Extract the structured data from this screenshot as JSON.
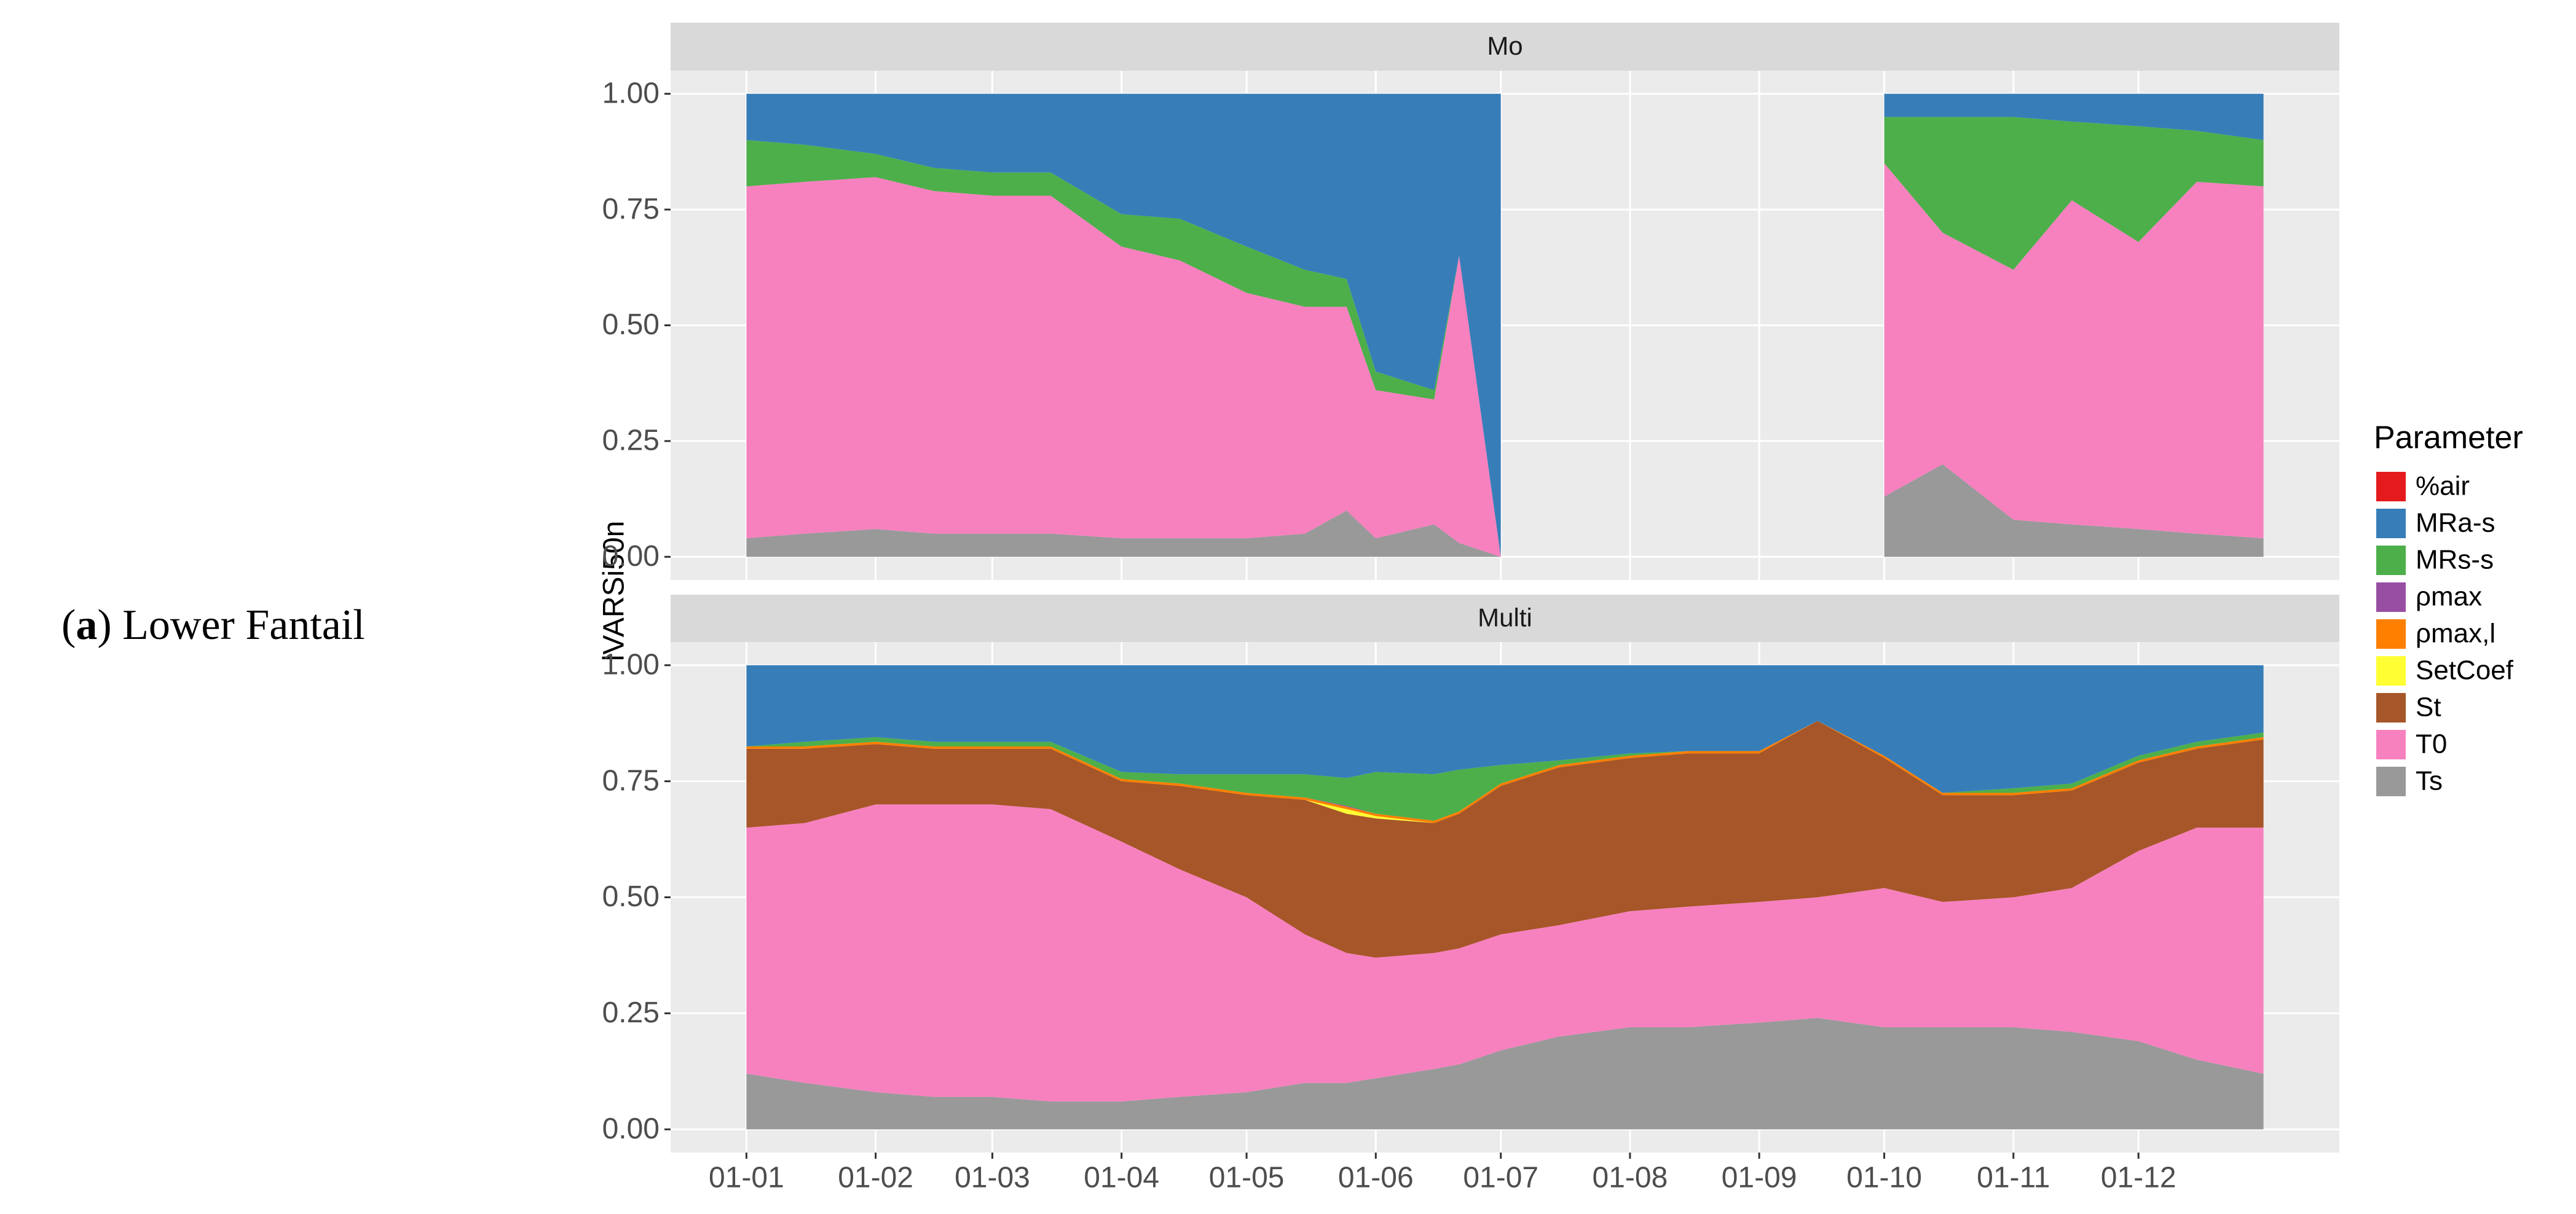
{
  "caption": {
    "open": "(",
    "label": "a",
    "text": ") Lower Fantail"
  },
  "chart_data": {
    "type": "stacked_area",
    "ylabel": "lVARSi50n",
    "legend_title": "Parameter",
    "legend": "right",
    "grid": true,
    "x": [
      1,
      15,
      32,
      46,
      60,
      74,
      91,
      105,
      121,
      135,
      145,
      152,
      166,
      172,
      182,
      196,
      213,
      227,
      244,
      258,
      274,
      288,
      305,
      319,
      335,
      349,
      365
    ],
    "xlim": [
      -17.2,
      383.2
    ],
    "xticks": [
      {
        "value": 1,
        "label": "01-01"
      },
      {
        "value": 32,
        "label": "01-02"
      },
      {
        "value": 60,
        "label": "01-03"
      },
      {
        "value": 91,
        "label": "01-04"
      },
      {
        "value": 121,
        "label": "01-05"
      },
      {
        "value": 152,
        "label": "01-06"
      },
      {
        "value": 182,
        "label": "01-07"
      },
      {
        "value": 213,
        "label": "01-08"
      },
      {
        "value": 244,
        "label": "01-09"
      },
      {
        "value": 274,
        "label": "01-10"
      },
      {
        "value": 305,
        "label": "01-11"
      },
      {
        "value": 335,
        "label": "01-12"
      }
    ],
    "ylim": [
      -0.05,
      1.05
    ],
    "yticks": [
      {
        "value": 0,
        "label": "0.00"
      },
      {
        "value": 0.25,
        "label": "0.25"
      },
      {
        "value": 0.5,
        "label": "0.50"
      },
      {
        "value": 0.75,
        "label": "0.75"
      },
      {
        "value": 1,
        "label": "1.00"
      }
    ],
    "series": [
      {
        "name": "%air",
        "color": "#e41a1c"
      },
      {
        "name": "MRa-s",
        "color": "#377eb8"
      },
      {
        "name": "MRs-s",
        "color": "#4daf4a"
      },
      {
        "name": "ρmax",
        "color": "#984ea3"
      },
      {
        "name": "ρmax,l",
        "color": "#ff7f00"
      },
      {
        "name": "SetCoef",
        "color": "#ffff33"
      },
      {
        "name": "St",
        "color": "#a65628"
      },
      {
        "name": "T0",
        "color": "#f781bf"
      },
      {
        "name": "Ts",
        "color": "#999999"
      }
    ],
    "facets": [
      {
        "title": "Mo",
        "values": [
          [
            0,
            0,
            0,
            0,
            0,
            0,
            0,
            0,
            0,
            0,
            0,
            0,
            0,
            0,
            0,
            null,
            null,
            null,
            null,
            null,
            0,
            0,
            0,
            0,
            0,
            0,
            0
          ],
          [
            0.1,
            0.11,
            0.13,
            0.16,
            0.17,
            0.17,
            0.26,
            0.27,
            0.33,
            0.38,
            0.4,
            0.6,
            0.64,
            0.35,
            1,
            null,
            null,
            null,
            null,
            null,
            0.05,
            0.05,
            0.05,
            0.06,
            0.07,
            0.08,
            0.1
          ],
          [
            0.1,
            0.08,
            0.05,
            0.05,
            0.05,
            0.05,
            0.07,
            0.09,
            0.1,
            0.08,
            0.06,
            0.04,
            0.02,
            0,
            0,
            null,
            null,
            null,
            null,
            null,
            0.1,
            0.25,
            0.33,
            0.17,
            0.25,
            0.11,
            0.1
          ],
          [
            0,
            0,
            0,
            0,
            0,
            0,
            0,
            0,
            0,
            0,
            0,
            0,
            0,
            0,
            0,
            null,
            null,
            null,
            null,
            null,
            0,
            0,
            0,
            0,
            0,
            0,
            0
          ],
          [
            0,
            0,
            0,
            0,
            0,
            0,
            0,
            0,
            0,
            0,
            0,
            0,
            0,
            0,
            0,
            null,
            null,
            null,
            null,
            null,
            0,
            0,
            0,
            0,
            0,
            0,
            0
          ],
          [
            0,
            0,
            0,
            0,
            0,
            0,
            0,
            0,
            0,
            0,
            0,
            0,
            0,
            0,
            0,
            null,
            null,
            null,
            null,
            null,
            0,
            0,
            0,
            0,
            0,
            0,
            0
          ],
          [
            0,
            0,
            0,
            0,
            0,
            0,
            0,
            0,
            0,
            0,
            0,
            0,
            0,
            0,
            0,
            null,
            null,
            null,
            null,
            null,
            0,
            0,
            0,
            0,
            0,
            0,
            0
          ],
          [
            0.76,
            0.76,
            0.76,
            0.74,
            0.73,
            0.73,
            0.63,
            0.6,
            0.53,
            0.49,
            0.44,
            0.32,
            0.27,
            0.62,
            0,
            null,
            null,
            null,
            null,
            null,
            0.72,
            0.5,
            0.54,
            0.7,
            0.62,
            0.76,
            0.76
          ],
          [
            0.04,
            0.05,
            0.06,
            0.05,
            0.05,
            0.05,
            0.04,
            0.04,
            0.04,
            0.05,
            0.1,
            0.04,
            0.07,
            0.03,
            0,
            null,
            null,
            null,
            null,
            null,
            0.13,
            0.2,
            0.08,
            0.07,
            0.06,
            0.05,
            0.04
          ]
        ]
      },
      {
        "title": "Multi",
        "values": [
          [
            0,
            0,
            0,
            0,
            0,
            0,
            0,
            0,
            0,
            0,
            0,
            0,
            0,
            0,
            0,
            0,
            0,
            0,
            0,
            0,
            0,
            0,
            0,
            0,
            0,
            0,
            0
          ],
          [
            0.175,
            0.165,
            0.155,
            0.165,
            0.165,
            0.165,
            0.23,
            0.235,
            0.235,
            0.235,
            0.243,
            0.23,
            0.235,
            0.225,
            0.215,
            0.205,
            0.19,
            0.185,
            0.185,
            0.12,
            0.195,
            0.275,
            0.265,
            0.255,
            0.195,
            0.165,
            0.145
          ],
          [
            0,
            0.01,
            0.01,
            0.01,
            0.01,
            0.01,
            0.015,
            0.02,
            0.04,
            0.05,
            0.06,
            0.09,
            0.1,
            0.09,
            0.04,
            0.01,
            0.005,
            0,
            0,
            0,
            0,
            0,
            0.01,
            0.01,
            0.01,
            0.01,
            0.01
          ],
          [
            0,
            0,
            0,
            0,
            0,
            0,
            0,
            0,
            0,
            0,
            0.002,
            0,
            0,
            0,
            0,
            0,
            0,
            0,
            0,
            0,
            0,
            0,
            0,
            0,
            0,
            0,
            0
          ],
          [
            0.005,
            0.005,
            0.005,
            0.005,
            0.005,
            0.005,
            0.005,
            0.005,
            0.005,
            0.005,
            0.005,
            0.005,
            0.005,
            0.005,
            0.005,
            0.005,
            0.005,
            0.005,
            0.005,
            0,
            0.005,
            0.005,
            0.005,
            0.005,
            0.005,
            0.005,
            0.005
          ],
          [
            0,
            0,
            0,
            0,
            0,
            0,
            0,
            0,
            0,
            0,
            0.01,
            0.005,
            0,
            0,
            0,
            0,
            0,
            0,
            0,
            0,
            0,
            0,
            0,
            0,
            0,
            0,
            0
          ],
          [
            0.17,
            0.16,
            0.13,
            0.12,
            0.12,
            0.13,
            0.13,
            0.18,
            0.22,
            0.29,
            0.3,
            0.3,
            0.28,
            0.29,
            0.32,
            0.34,
            0.33,
            0.33,
            0.32,
            0.38,
            0.28,
            0.23,
            0.22,
            0.21,
            0.19,
            0.17,
            0.19
          ],
          [
            0.53,
            0.56,
            0.62,
            0.63,
            0.63,
            0.63,
            0.56,
            0.49,
            0.42,
            0.32,
            0.28,
            0.26,
            0.25,
            0.25,
            0.25,
            0.24,
            0.25,
            0.26,
            0.26,
            0.26,
            0.3,
            0.27,
            0.28,
            0.31,
            0.41,
            0.5,
            0.53
          ],
          [
            0.12,
            0.1,
            0.08,
            0.07,
            0.07,
            0.06,
            0.06,
            0.07,
            0.08,
            0.1,
            0.1,
            0.11,
            0.13,
            0.14,
            0.17,
            0.2,
            0.22,
            0.22,
            0.23,
            0.24,
            0.22,
            0.22,
            0.22,
            0.21,
            0.19,
            0.15,
            0.12
          ]
        ]
      }
    ]
  }
}
